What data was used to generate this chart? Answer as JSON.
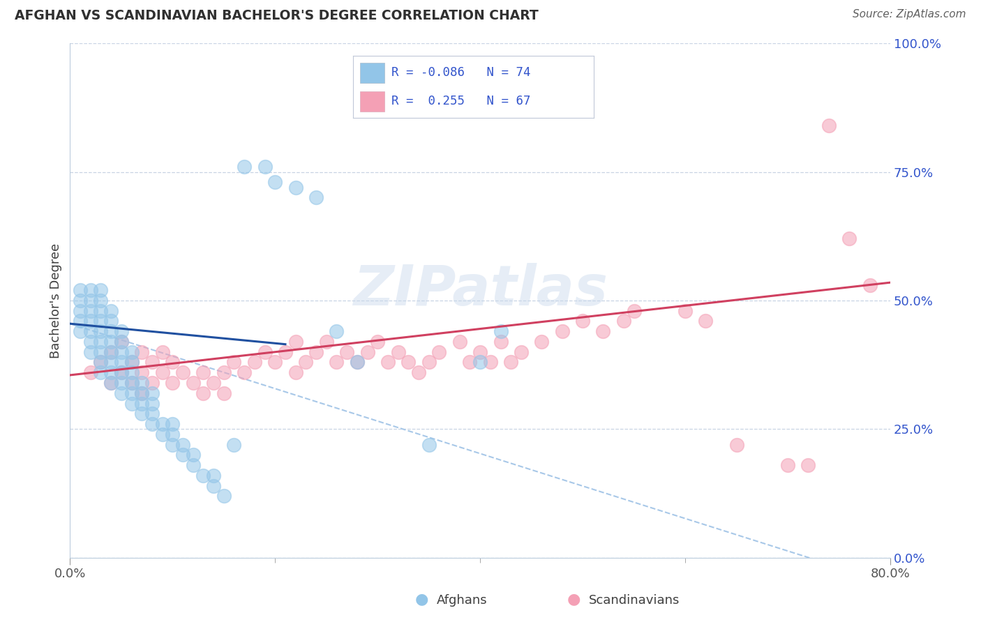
{
  "title": "AFGHAN VS SCANDINAVIAN BACHELOR'S DEGREE CORRELATION CHART",
  "source": "Source: ZipAtlas.com",
  "ylabel": "Bachelor's Degree",
  "watermark": "ZIPatlas",
  "xlim": [
    0.0,
    0.8
  ],
  "ylim": [
    0.0,
    1.0
  ],
  "xtick_labels": [
    "0.0%",
    "80.0%"
  ],
  "ytick_labels": [
    "0.0%",
    "25.0%",
    "50.0%",
    "75.0%",
    "100.0%"
  ],
  "ytick_vals": [
    0.0,
    0.25,
    0.5,
    0.75,
    1.0
  ],
  "xtick_vals": [
    0.0,
    0.8
  ],
  "xtick_minor_vals": [
    0.2,
    0.4,
    0.6
  ],
  "afghan_color": "#92C5E8",
  "scandinavian_color": "#F4A0B5",
  "afghan_line_color": "#2050A0",
  "scandinavian_line_color": "#D04060",
  "dashed_line_color": "#A8C8E8",
  "background_color": "#FFFFFF",
  "grid_color": "#C8D4E4",
  "title_color": "#303030",
  "source_color": "#606060",
  "legend_text_color": "#3355CC",
  "afghan_scatter_x": [
    0.01,
    0.01,
    0.01,
    0.01,
    0.01,
    0.02,
    0.02,
    0.02,
    0.02,
    0.02,
    0.02,
    0.02,
    0.03,
    0.03,
    0.03,
    0.03,
    0.03,
    0.03,
    0.03,
    0.03,
    0.03,
    0.04,
    0.04,
    0.04,
    0.04,
    0.04,
    0.04,
    0.04,
    0.04,
    0.05,
    0.05,
    0.05,
    0.05,
    0.05,
    0.05,
    0.05,
    0.06,
    0.06,
    0.06,
    0.06,
    0.06,
    0.06,
    0.07,
    0.07,
    0.07,
    0.07,
    0.08,
    0.08,
    0.08,
    0.08,
    0.09,
    0.09,
    0.1,
    0.1,
    0.1,
    0.11,
    0.11,
    0.12,
    0.12,
    0.13,
    0.14,
    0.14,
    0.15,
    0.16,
    0.17,
    0.19,
    0.2,
    0.22,
    0.24,
    0.26,
    0.28,
    0.35,
    0.4,
    0.42
  ],
  "afghan_scatter_y": [
    0.44,
    0.46,
    0.48,
    0.5,
    0.52,
    0.4,
    0.42,
    0.44,
    0.46,
    0.48,
    0.5,
    0.52,
    0.36,
    0.38,
    0.4,
    0.42,
    0.44,
    0.46,
    0.48,
    0.5,
    0.52,
    0.34,
    0.36,
    0.38,
    0.4,
    0.42,
    0.44,
    0.46,
    0.48,
    0.32,
    0.34,
    0.36,
    0.38,
    0.4,
    0.42,
    0.44,
    0.3,
    0.32,
    0.34,
    0.36,
    0.38,
    0.4,
    0.28,
    0.3,
    0.32,
    0.34,
    0.26,
    0.28,
    0.3,
    0.32,
    0.24,
    0.26,
    0.22,
    0.24,
    0.26,
    0.2,
    0.22,
    0.18,
    0.2,
    0.16,
    0.14,
    0.16,
    0.12,
    0.22,
    0.76,
    0.76,
    0.73,
    0.72,
    0.7,
    0.44,
    0.38,
    0.22,
    0.38,
    0.44
  ],
  "scandi_scatter_x": [
    0.02,
    0.03,
    0.04,
    0.04,
    0.05,
    0.05,
    0.06,
    0.06,
    0.07,
    0.07,
    0.07,
    0.08,
    0.08,
    0.09,
    0.09,
    0.1,
    0.1,
    0.11,
    0.12,
    0.13,
    0.13,
    0.14,
    0.15,
    0.15,
    0.16,
    0.17,
    0.18,
    0.19,
    0.2,
    0.21,
    0.22,
    0.22,
    0.23,
    0.24,
    0.25,
    0.26,
    0.27,
    0.28,
    0.29,
    0.3,
    0.31,
    0.32,
    0.33,
    0.34,
    0.35,
    0.36,
    0.38,
    0.39,
    0.4,
    0.41,
    0.42,
    0.43,
    0.44,
    0.46,
    0.48,
    0.5,
    0.52,
    0.54,
    0.55,
    0.6,
    0.62,
    0.65,
    0.7,
    0.72,
    0.74,
    0.76,
    0.78
  ],
  "scandi_scatter_y": [
    0.36,
    0.38,
    0.34,
    0.4,
    0.36,
    0.42,
    0.34,
    0.38,
    0.32,
    0.36,
    0.4,
    0.34,
    0.38,
    0.36,
    0.4,
    0.34,
    0.38,
    0.36,
    0.34,
    0.32,
    0.36,
    0.34,
    0.32,
    0.36,
    0.38,
    0.36,
    0.38,
    0.4,
    0.38,
    0.4,
    0.36,
    0.42,
    0.38,
    0.4,
    0.42,
    0.38,
    0.4,
    0.38,
    0.4,
    0.42,
    0.38,
    0.4,
    0.38,
    0.36,
    0.38,
    0.4,
    0.42,
    0.38,
    0.4,
    0.38,
    0.42,
    0.38,
    0.4,
    0.42,
    0.44,
    0.46,
    0.44,
    0.46,
    0.48,
    0.48,
    0.46,
    0.22,
    0.18,
    0.18,
    0.84,
    0.62,
    0.53
  ],
  "afghan_line_x": [
    0.0,
    0.21
  ],
  "afghan_line_y": [
    0.455,
    0.415
  ],
  "scandi_line_x": [
    0.0,
    0.8
  ],
  "scandi_line_y": [
    0.355,
    0.535
  ],
  "dashed_line_x": [
    0.0,
    0.8
  ],
  "dashed_line_y": [
    0.455,
    -0.05
  ]
}
